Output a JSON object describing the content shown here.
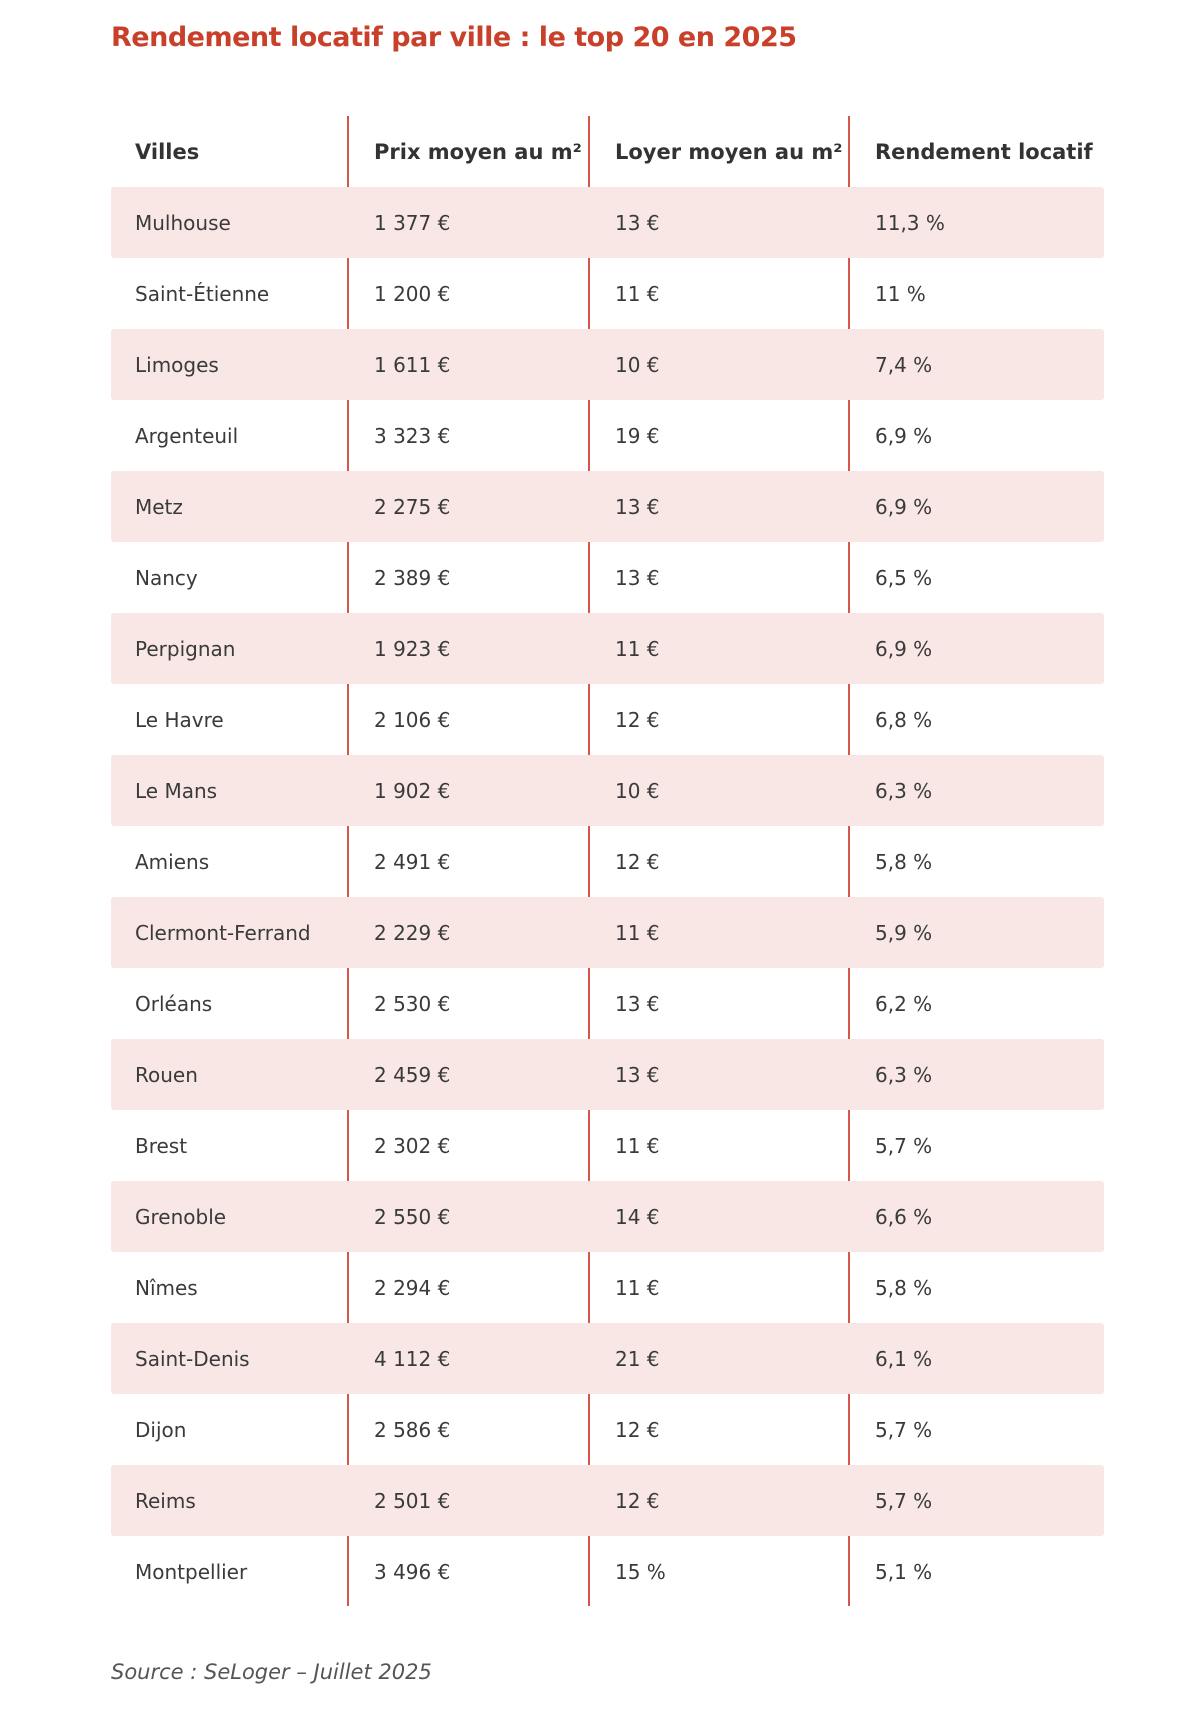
{
  "title": "Rendement locatif par ville : le top 20 en 2025",
  "colors": {
    "accent": "#c9402a",
    "row_shade": "#f8e7e5",
    "divider": "#d4574a"
  },
  "table": {
    "headers": [
      "Villes",
      "Prix moyen au m²",
      "Loyer moyen au m²",
      "Rendement locatif"
    ],
    "rows": [
      [
        "Mulhouse",
        "1 377 €",
        "13 €",
        "11,3 %"
      ],
      [
        "Saint-Étienne",
        "1 200 €",
        "11 €",
        "11 %"
      ],
      [
        "Limoges",
        "1 611 €",
        "10 €",
        "7,4 %"
      ],
      [
        "Argenteuil",
        "3 323 €",
        "19 €",
        "6,9 %"
      ],
      [
        "Metz",
        "2 275 €",
        "13 €",
        "6,9 %"
      ],
      [
        "Nancy",
        "2 389 €",
        "13 €",
        "6,5 %"
      ],
      [
        "Perpignan",
        "1 923 €",
        "11 €",
        "6,9 %"
      ],
      [
        "Le Havre",
        "2 106 €",
        "12 €",
        "6,8 %"
      ],
      [
        "Le Mans",
        "1 902 €",
        "10 €",
        "6,3 %"
      ],
      [
        "Amiens",
        "2 491 €",
        "12 €",
        "5,8 %"
      ],
      [
        "Clermont-Ferrand",
        "2 229 €",
        "11 €",
        "5,9 %"
      ],
      [
        "Orléans",
        "2 530 €",
        "13 €",
        "6,2 %"
      ],
      [
        "Rouen",
        "2 459 €",
        "13 €",
        "6,3 %"
      ],
      [
        "Brest",
        "2 302 €",
        "11 €",
        "5,7 %"
      ],
      [
        "Grenoble",
        "2 550 €",
        "14 €",
        "6,6 %"
      ],
      [
        "Nîmes",
        "2 294 €",
        "11 €",
        "5,8 %"
      ],
      [
        "Saint-Denis",
        "4 112 €",
        "21 €",
        "6,1 %"
      ],
      [
        "Dijon",
        "2 586 €",
        "12 €",
        "5,7 %"
      ],
      [
        "Reims",
        "2 501 €",
        "12 €",
        "5,7 %"
      ],
      [
        "Montpellier",
        "3 496 €",
        "15 %",
        "5,1 %"
      ]
    ]
  },
  "source": "Source : SeLoger – Juillet 2025"
}
